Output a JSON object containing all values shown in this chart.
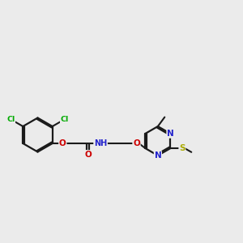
{
  "background_color": "#ebebeb",
  "bond_color": "#1a1a1a",
  "atom_colors": {
    "Cl": "#00aa00",
    "O": "#cc0000",
    "N": "#2222cc",
    "S": "#aaaa00",
    "C": "#1a1a1a"
  },
  "figsize": [
    3.0,
    3.0
  ],
  "dpi": 100,
  "xlim": [
    0.0,
    10.0
  ],
  "ylim": [
    2.5,
    6.0
  ]
}
